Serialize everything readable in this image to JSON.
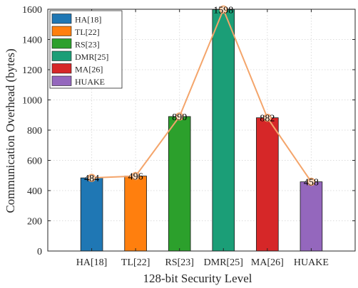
{
  "chart_data": {
    "type": "bar",
    "categories": [
      "HA[18]",
      "TL[22]",
      "RS[23]",
      "DMR[25]",
      "MA[26]",
      "HUAKE"
    ],
    "values": [
      484,
      496,
      890,
      1598,
      882,
      458
    ],
    "data_labels": [
      "484",
      "496",
      "890",
      "1598",
      "882",
      "458"
    ],
    "colors": [
      "#1f77b4",
      "#ff7f0e",
      "#2ca02c",
      "#1b9e77",
      "#d62728",
      "#9467bd"
    ],
    "xlabel": "128-bit Security Level",
    "ylabel": "Communication Overhead (bytes)",
    "ylim": [
      0,
      1600
    ],
    "yticks": [
      0,
      200,
      400,
      600,
      800,
      1000,
      1200,
      1400,
      1600
    ],
    "ytick_labels": [
      "0",
      "200",
      "400",
      "600",
      "800",
      "1000",
      "1200",
      "1400",
      "1600"
    ],
    "grid": true,
    "legend": {
      "placement": "top-left",
      "entries": [
        "HA[18]",
        "TL[22]",
        "RS[23]",
        "DMR[25]",
        "MA[26]",
        "HUAKE"
      ]
    },
    "overlay_line": {
      "type": "line",
      "color": "#f4a56b",
      "marker_fill": "#fde0c8",
      "values": [
        484,
        496,
        890,
        1598,
        882,
        458
      ]
    }
  }
}
